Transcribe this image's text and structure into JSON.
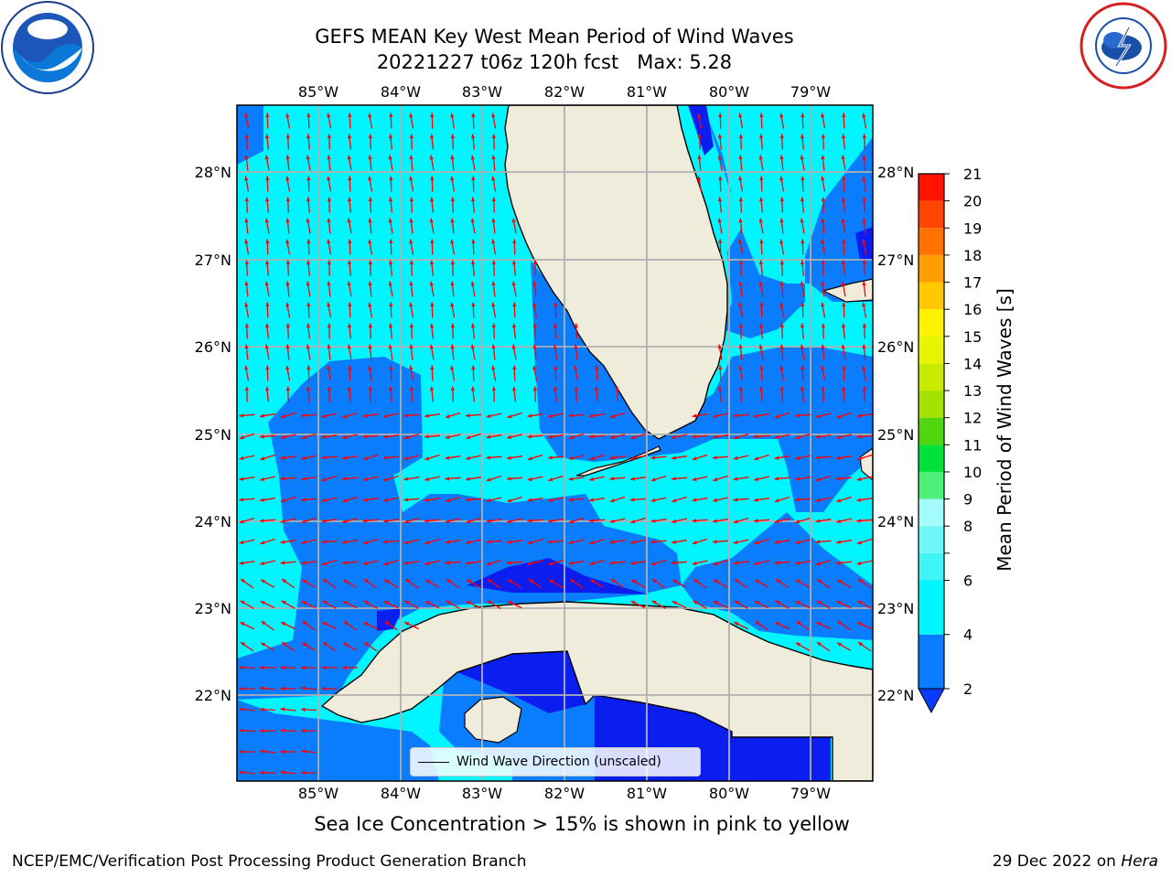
{
  "title": {
    "line1": "GEFS MEAN Key West Mean Period of Wind Waves",
    "line2": "20221227 t06z 120h fcst   Max: 5.28"
  },
  "map": {
    "longitude_labels": [
      "85°W",
      "84°W",
      "83°W",
      "82°W",
      "81°W",
      "80°W",
      "79°W"
    ],
    "latitude_labels": [
      "28°N",
      "27°N",
      "26°N",
      "25°N",
      "24°N",
      "23°N",
      "22°N"
    ],
    "legend": {
      "label": "Wind Wave Direction (unscaled)",
      "line_color": "#000000"
    },
    "arrow_color": "#ff0000",
    "land_color": "#efecdc",
    "grid_color": "#b0b0b0"
  },
  "colorbar": {
    "title": "Mean Period of Wind Waves [s]",
    "ticks": [
      "2",
      "4",
      "6",
      "8",
      "9",
      "10",
      "11",
      "12",
      "13",
      "14",
      "15",
      "16",
      "17",
      "18",
      "19",
      "20",
      "21"
    ],
    "bands": [
      {
        "from": 2,
        "to": 4,
        "color": "#0a7dff"
      },
      {
        "from": 4,
        "to": 6,
        "color": "#00f5ff"
      },
      {
        "from": 6,
        "to": 7,
        "color": "#3ff4f4"
      },
      {
        "from": 7,
        "to": 8,
        "color": "#6ff7f7"
      },
      {
        "from": 8,
        "to": 9,
        "color": "#a3fbfb"
      },
      {
        "from": 9,
        "to": 10,
        "color": "#4ff07a"
      },
      {
        "from": 10,
        "to": 11,
        "color": "#00e23a"
      },
      {
        "from": 11,
        "to": 12,
        "color": "#4fd60e"
      },
      {
        "from": 12,
        "to": 13,
        "color": "#a4e000"
      },
      {
        "from": 13,
        "to": 14,
        "color": "#c8eb00"
      },
      {
        "from": 14,
        "to": 15,
        "color": "#e8f500"
      },
      {
        "from": 15,
        "to": 16,
        "color": "#fff200"
      },
      {
        "from": 16,
        "to": 17,
        "color": "#ffc800"
      },
      {
        "from": 17,
        "to": 18,
        "color": "#ff9e00"
      },
      {
        "from": 18,
        "to": 19,
        "color": "#ff7200"
      },
      {
        "from": 19,
        "to": 20,
        "color": "#ff4600"
      },
      {
        "from": 20,
        "to": 21,
        "color": "#ff1400"
      }
    ],
    "extend_color": "#0a3cff"
  },
  "field_colors": {
    "period_2_4": "#0a7dff",
    "period_4_6": "#00f5ff",
    "below_2": "#0a1ef0"
  },
  "ice_note": "Sea Ice Concentration > 15% is shown in pink to yellow",
  "footer": {
    "left": "NCEP/EMC/Verification Post Processing Product Generation Branch",
    "right_date": "29 Dec 2022 on",
    "right_host": "Hera"
  }
}
